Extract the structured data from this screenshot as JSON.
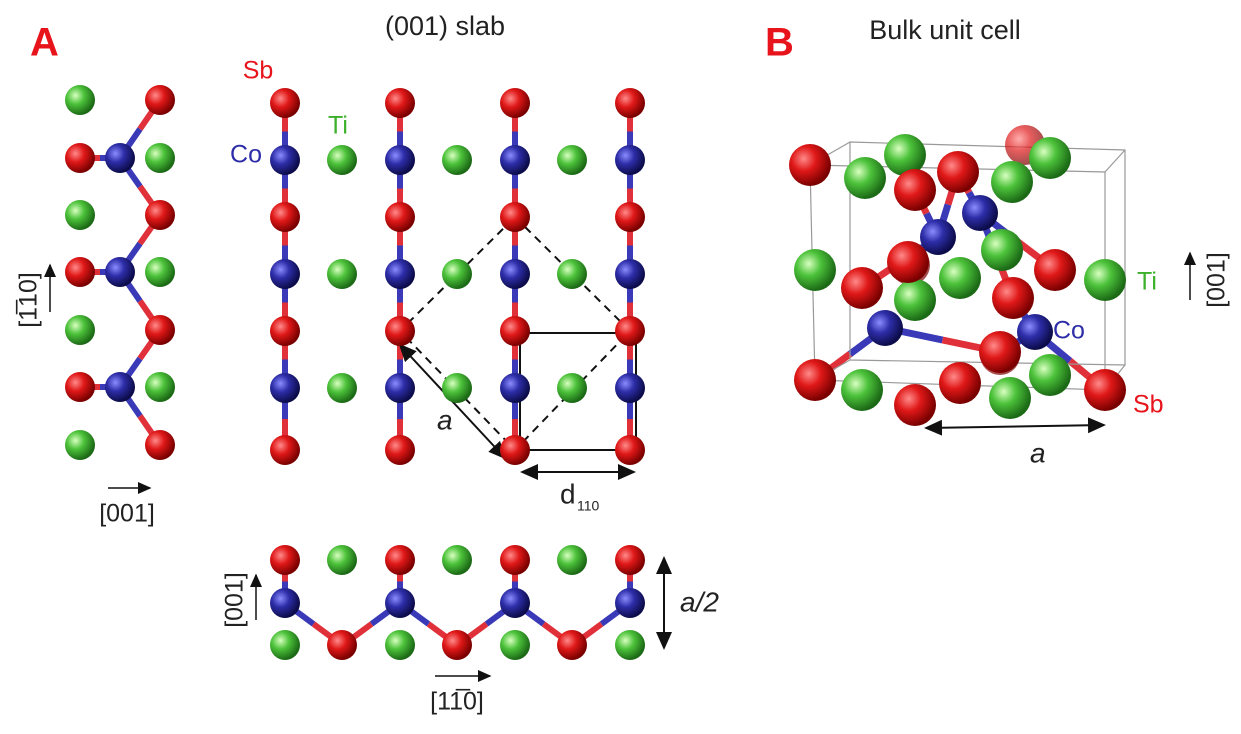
{
  "panel_a": {
    "label": "A",
    "title": "(001) slab",
    "atom_sb": "Sb",
    "atom_co": "Co",
    "atom_ti": "Ti",
    "lattice": "a",
    "spacing": "d",
    "spacing_sub": "110",
    "chain_axis_vertical": "[1̅10]",
    "chain_axis_horizontal": "[001]",
    "slab_axis_vertical": "[001]",
    "slab_axis_horizontal": "[11̅0]",
    "half_lattice": "a/2"
  },
  "panel_b": {
    "label": "B",
    "title": "Bulk unit cell",
    "atom_ti": "Ti",
    "atom_co": "Co",
    "atom_sb": "Sb",
    "lattice": "a",
    "axis": "[001]"
  }
}
